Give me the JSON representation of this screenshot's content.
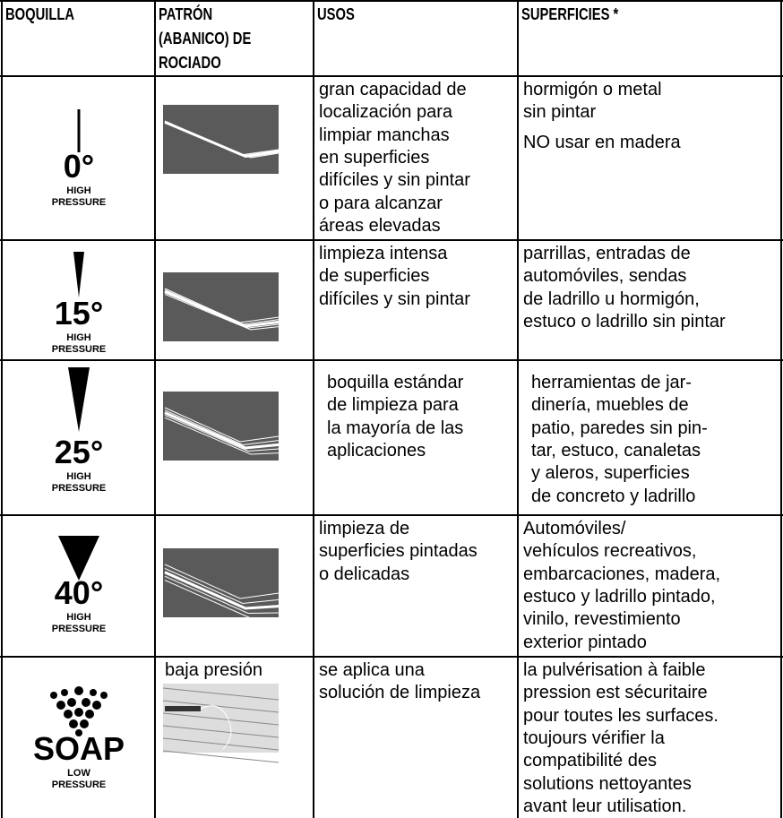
{
  "table": {
    "headers": [
      [
        "BOQUILLA"
      ],
      [
        "PATRÓN",
        "(ABANICO) DE",
        "ROCIADO"
      ],
      [
        "USOS"
      ],
      [
        "SUPERFICIES *"
      ]
    ],
    "rows": [
      {
        "nozzle": "0°",
        "pressure": [
          "HIGH",
          "PRESSURE"
        ],
        "uses": [
          "gran capacidad de",
          "localización para",
          "limpiar manchas",
          "en superficies",
          "difíciles y sin pintar",
          "o para alcanzar",
          "áreas elevadas"
        ],
        "surfaces": [
          [
            "hormigón o metal",
            "sin pintar"
          ],
          [
            "NO usar en madera"
          ]
        ]
      },
      {
        "nozzle": "15°",
        "pressure": [
          "HIGH",
          "PRESSURE"
        ],
        "uses": [
          "limpieza intensa",
          "de superficies",
          "difíciles y sin pintar"
        ],
        "surfaces": [
          [
            "parrillas, entradas de",
            "automóviles, sendas",
            "de ladrillo u hormigón,",
            "estuco o ladrillo sin pintar"
          ]
        ]
      },
      {
        "nozzle": "25°",
        "pressure": [
          "HIGH",
          "PRESSURE"
        ],
        "uses": [
          "boquilla estándar",
          "de limpieza para",
          "la mayoría de las",
          "aplicaciones"
        ],
        "surfaces": [
          [
            "herramientas de jar-",
            "dinería, muebles de",
            "patio, paredes sin pin-",
            "tar, estuco, canaletas",
            "y aleros, superficies",
            "de concreto y ladrillo"
          ]
        ]
      },
      {
        "nozzle": "40°",
        "pressure": [
          "HIGH",
          "PRESSURE"
        ],
        "uses": [
          "limpieza de",
          "superficies pintadas",
          "o delicadas"
        ],
        "surfaces": [
          [
            "Automóviles/",
            "vehículos recreativos,",
            "embarcaciones, madera,",
            "estuco y ladrillo pintado,",
            "vinilo, revestimiento",
            "exterior pintado"
          ]
        ]
      },
      {
        "nozzle": "SOAP",
        "pressure": [
          "LOW",
          "PRESSURE"
        ],
        "pattern_label": "baja presión",
        "uses": [
          "se aplica una",
          "solución de limpieza"
        ],
        "surfaces": [
          [
            "la pulvérisation à faible",
            "pression est sécuritaire",
            "pour toutes les surfaces.",
            "toujours vérifier la",
            "compatibilité des",
            "solutions nettoyantes",
            "avant leur utilisation."
          ]
        ]
      }
    ]
  }
}
